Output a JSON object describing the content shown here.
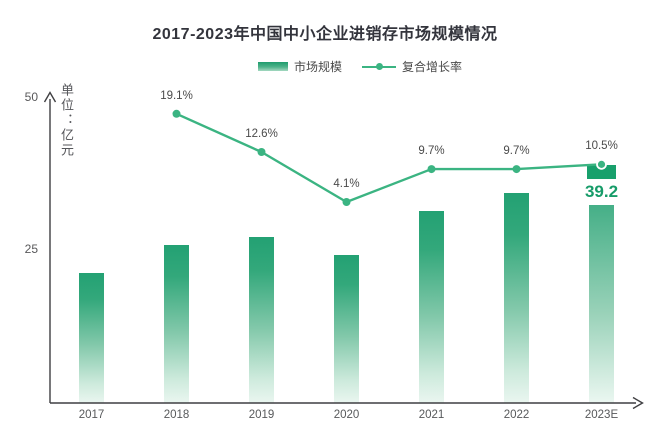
{
  "title": "2017-2023年中国中小企业进销存市场规模情况",
  "legend": {
    "bar_label": "市场规模",
    "line_label": "复合增长率"
  },
  "y_axis": {
    "unit_label": "单位：亿元",
    "tick_top": "50",
    "tick_mid": "25"
  },
  "chart_data": {
    "type": "bar+line",
    "title": "2017-2023年中国中小企业进销存市场规模情况",
    "categories": [
      "2017",
      "2018",
      "2019",
      "2020",
      "2021",
      "2022",
      "2023E"
    ],
    "series": [
      {
        "name": "市场规模",
        "type": "bar",
        "unit": "亿元",
        "values": [
          21.4,
          26.0,
          27.3,
          24.3,
          31.6,
          34.5,
          39.2
        ]
      },
      {
        "name": "复合增长率",
        "type": "line",
        "values": [
          null,
          19.1,
          12.6,
          4.1,
          9.7,
          9.7,
          10.5
        ],
        "labels": [
          "",
          "19.1%",
          "12.6%",
          "4.1%",
          "9.7%",
          "9.7%",
          "10.5%"
        ]
      }
    ],
    "highlighted_value_label": "39.2",
    "ylabel": "单位：亿元",
    "ylim": [
      0,
      50
    ],
    "yticks": [
      25,
      50
    ],
    "grid": false,
    "legend_position": "top-center"
  },
  "colors": {
    "line": "#3bb482",
    "bar_top": "#23a173",
    "bar_bottom": "#eaf6f0",
    "cap": "#18a06c",
    "highlight_text": "#179c69",
    "title_text": "#33343c",
    "axis": "#3f3f42",
    "label_text": "#4a4a4a"
  }
}
